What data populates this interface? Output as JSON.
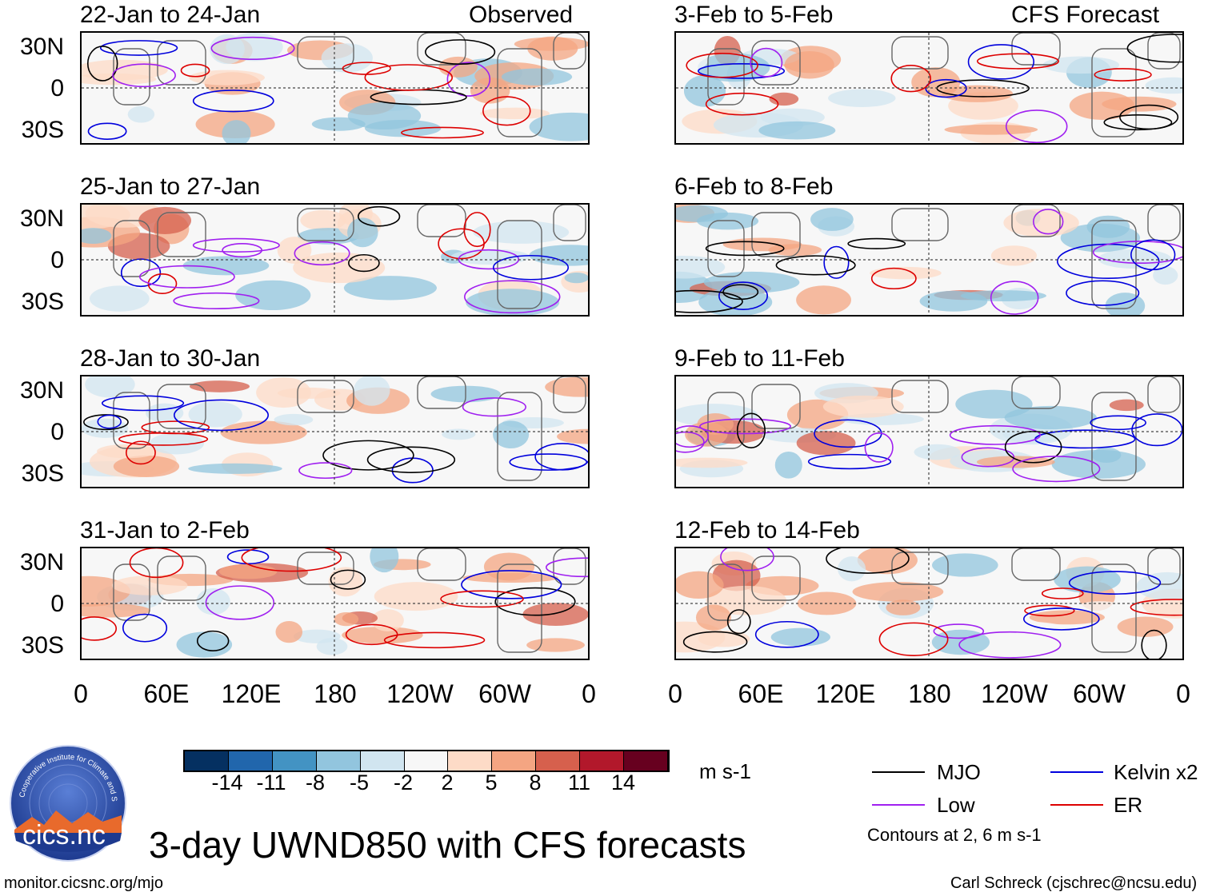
{
  "panels": {
    "obs": [
      {
        "title": "22-Jan to 24-Jan"
      },
      {
        "title": "25-Jan to 27-Jan"
      },
      {
        "title": "28-Jan to 30-Jan"
      },
      {
        "title": "31-Jan to 2-Feb"
      }
    ],
    "fcst": [
      {
        "title": "3-Feb to 5-Feb"
      },
      {
        "title": "6-Feb to 8-Feb"
      },
      {
        "title": "9-Feb to 11-Feb"
      },
      {
        "title": "12-Feb to 14-Feb"
      }
    ],
    "observed_tag": "Observed",
    "forecast_tag": "CFS Forecast"
  },
  "lat_labels": [
    "30N",
    "0",
    "30S"
  ],
  "lon_labels": [
    "0",
    "60E",
    "120E",
    "180",
    "120W",
    "60W",
    "0"
  ],
  "colorbar": {
    "labels": [
      "-14",
      "-11",
      "-8",
      "-5",
      "-2",
      "2",
      "5",
      "8",
      "11",
      "14"
    ],
    "colors": [
      "#053061",
      "#2166ac",
      "#4393c3",
      "#92c5de",
      "#d1e5f0",
      "#f7f7f7",
      "#fddbc7",
      "#f4a582",
      "#d6604d",
      "#b2182b",
      "#67001f"
    ],
    "units": "m s-1"
  },
  "legend": {
    "mjo": "MJO",
    "kelvin": "Kelvin x2",
    "low": "Low",
    "er": "ER",
    "contours_note": "Contours at 2, 6 m s-1",
    "colors": {
      "mjo": "#000000",
      "kelvin": "#0000dd",
      "low": "#a020f0",
      "er": "#dd0000"
    }
  },
  "logo": {
    "text": "cics.nc",
    "ring_text": "Cooperative Institute for Climate and Satellites"
  },
  "main_title": "3-day UWND850 with CFS forecasts",
  "footer": {
    "left": "monitor.cicsnc.org/mjo",
    "right": "Carl Schreck (cjschrec@ncsu.edu)"
  }
}
